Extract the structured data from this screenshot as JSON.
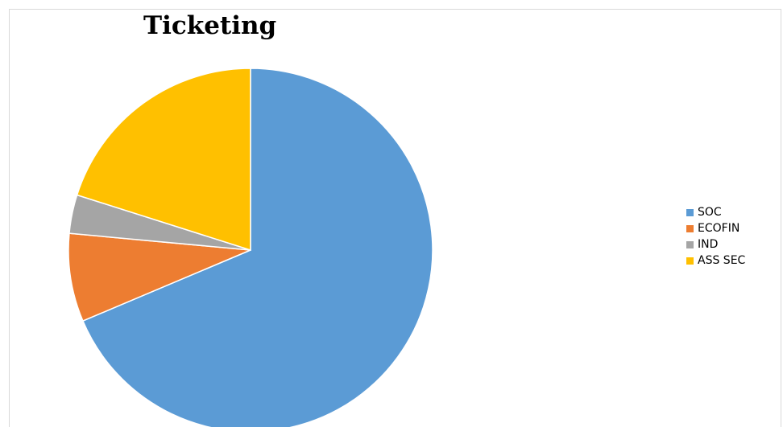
{
  "chart_data": {
    "type": "pie",
    "title": "Ticketing",
    "series": [
      {
        "name": "SOC",
        "value": 70,
        "color": "#5B9BD5"
      },
      {
        "name": "ECOFIN",
        "value": 8,
        "color": "#ED7D31"
      },
      {
        "name": "IND",
        "value": 3.5,
        "color": "#A5A5A5"
      },
      {
        "name": "ASS SEC",
        "value": 20.5,
        "color": "#FFC000"
      }
    ],
    "legend": "right"
  }
}
